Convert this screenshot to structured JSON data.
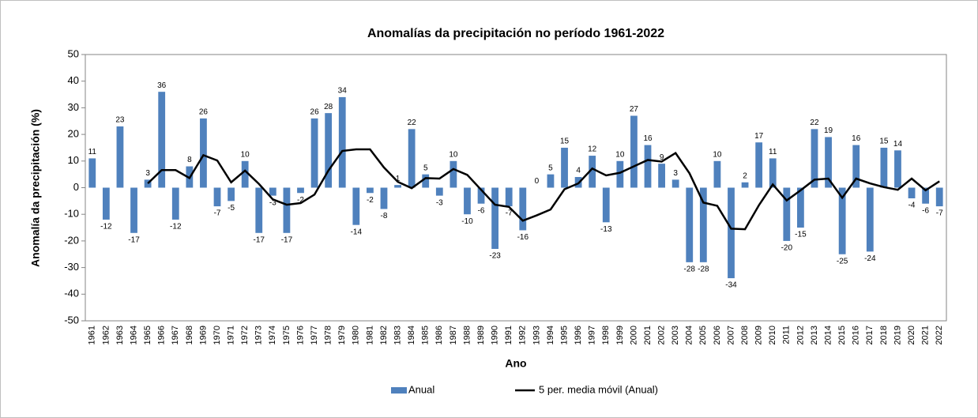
{
  "chart_data": {
    "type": "bar_line",
    "title": "Anomalías da precipitación no período 1961-2022",
    "x_label": "Ano",
    "y_label": "Anomalía da precipitación  (%)",
    "categories": [
      "1961",
      "1962",
      "1963",
      "1964",
      "1965",
      "1966",
      "1967",
      "1968",
      "1969",
      "1970",
      "1971",
      "1972",
      "1973",
      "1974",
      "1975",
      "1976",
      "1977",
      "1978",
      "1979",
      "1980",
      "1981",
      "1982",
      "1983",
      "1984",
      "1985",
      "1986",
      "1987",
      "1988",
      "1989",
      "1990",
      "1991",
      "1992",
      "1993",
      "1994",
      "1995",
      "1996",
      "1997",
      "1998",
      "1999",
      "2000",
      "2001",
      "2002",
      "2003",
      "2004",
      "2005",
      "2006",
      "2007",
      "2008",
      "2009",
      "2010",
      "2011",
      "2012",
      "2013",
      "2014",
      "2015",
      "2016",
      "2017",
      "2018",
      "2019",
      "2020",
      "2021",
      "2022"
    ],
    "series": [
      {
        "name": "Anual",
        "type": "bar",
        "color": "#4f81bd",
        "values": [
          11,
          -12,
          23,
          -17,
          3,
          36,
          -12,
          8,
          26,
          -7,
          -5,
          10,
          -17,
          -3,
          -17,
          -2,
          26,
          28,
          34,
          -14,
          -2,
          -8,
          1,
          22,
          5,
          -3,
          10,
          -10,
          -6,
          -23,
          -7,
          -16,
          0,
          5,
          15,
          4,
          12,
          -13,
          10,
          27,
          16,
          9,
          3,
          -28,
          -28,
          10,
          -34,
          2,
          17,
          11,
          -20,
          -15,
          22,
          19,
          -25,
          16,
          -24,
          15,
          14,
          -4,
          -6,
          -7
        ]
      },
      {
        "name": "5 per. media móvil (Anual)",
        "type": "line",
        "color": "#000000",
        "values": [
          null,
          null,
          null,
          null,
          1.6,
          6.6,
          6.6,
          3.6,
          12.2,
          10.2,
          2,
          6.4,
          1.4,
          -4.4,
          -6.4,
          -5.8,
          -2.6,
          6.4,
          13.8,
          14.4,
          14.4,
          7.6,
          2.2,
          -0.2,
          3.6,
          3.4,
          7,
          4.8,
          -0.8,
          -6.4,
          -7.2,
          -12.4,
          -10.4,
          -8.2,
          -0.6,
          1.6,
          7.2,
          4.6,
          5.6,
          8,
          10.4,
          9.8,
          13,
          5.4,
          -5.6,
          -6.8,
          -15.4,
          -15.6,
          -6.6,
          1.2,
          -4.8,
          -1,
          3,
          3.4,
          -3.8,
          3.4,
          1.6,
          0.2,
          -0.8,
          3.4,
          -1,
          2.4
        ]
      }
    ],
    "ylim": [
      -50,
      50
    ],
    "yticks": [
      50,
      40,
      30,
      20,
      10,
      0,
      -10,
      -20,
      -30,
      -40,
      -50
    ],
    "legend": "bottom"
  }
}
